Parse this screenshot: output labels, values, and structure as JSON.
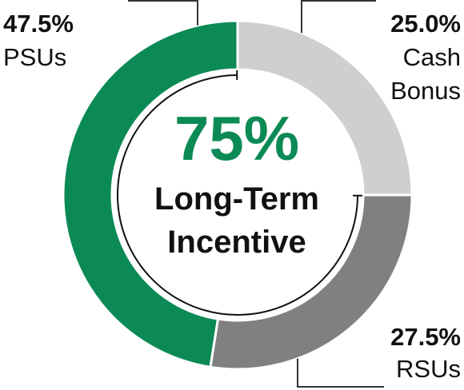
{
  "chart_data": {
    "type": "pie",
    "variant": "donut",
    "slices": [
      {
        "value": 25.0,
        "value_label": "25.0%",
        "label_lines": [
          "Cash",
          "Bonus"
        ],
        "color": "#cfcfcf"
      },
      {
        "value": 27.5,
        "value_label": "27.5%",
        "label_lines": [
          "RSUs"
        ],
        "color": "#808080"
      },
      {
        "value": 47.5,
        "value_label": "47.5%",
        "label_lines": [
          "PSUs"
        ],
        "color": "#0c8a55"
      }
    ],
    "center": {
      "value": "75%",
      "value_color": "#0c8a55",
      "text_lines": [
        "Long-Term",
        "Incentive"
      ]
    },
    "bracket": {
      "covers": [
        "RSUs",
        "PSUs"
      ],
      "note": "inner arc spanning the long-term incentive slices"
    }
  }
}
